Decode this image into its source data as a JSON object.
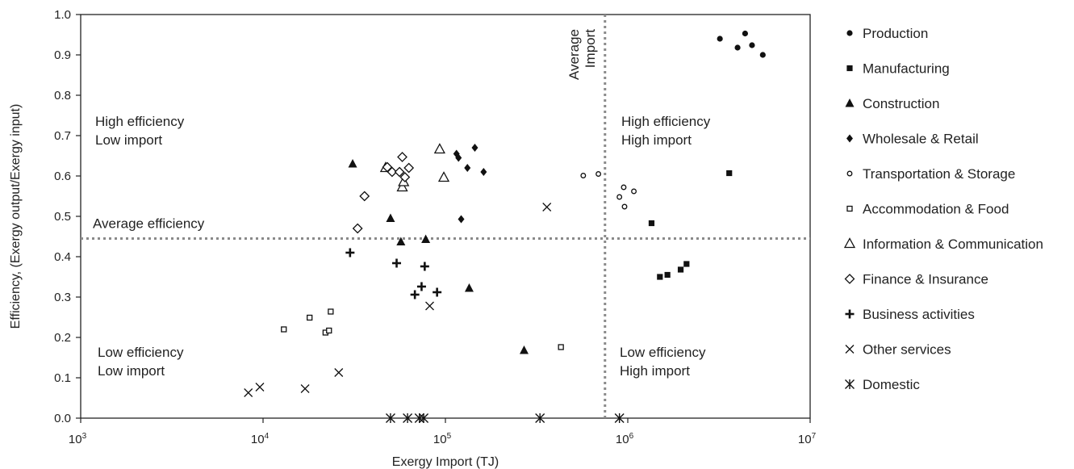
{
  "chart_data": {
    "type": "scatter",
    "title": "",
    "xlabel": "Exergy Import (TJ)",
    "ylabel": "Efficiency, (Exergy output/Exergy input)",
    "xscale": "log",
    "xlim": [
      1000,
      10000000
    ],
    "ylim": [
      0,
      1
    ],
    "x_ticks": [
      {
        "value": 1000,
        "base": "10",
        "exp": "3"
      },
      {
        "value": 10000,
        "base": "10",
        "exp": "4"
      },
      {
        "value": 100000,
        "base": "10",
        "exp": "5"
      },
      {
        "value": 1000000,
        "base": "10",
        "exp": "6"
      },
      {
        "value": 10000000,
        "base": "10",
        "exp": "7"
      }
    ],
    "y_ticks": [
      "0.0",
      "0.1",
      "0.2",
      "0.3",
      "0.4",
      "0.5",
      "0.6",
      "0.7",
      "0.8",
      "0.9",
      "1.0"
    ],
    "grid": false,
    "legend_position": "right",
    "reference_lines": [
      {
        "orientation": "horizontal",
        "value": 0.445,
        "label": "Average efficiency",
        "style": "dotted"
      },
      {
        "orientation": "vertical",
        "value": 750000,
        "label_lines": [
          "Average",
          "Import"
        ],
        "style": "dotted"
      }
    ],
    "quadrant_labels": [
      {
        "lines": [
          "High efficiency",
          "Low import"
        ],
        "anchor": "top-left"
      },
      {
        "lines": [
          "High efficiency",
          "High import"
        ],
        "anchor": "top-right"
      },
      {
        "lines": [
          "Low efficiency",
          "Low import"
        ],
        "anchor": "bottom-left"
      },
      {
        "lines": [
          "Low efficiency",
          "High import"
        ],
        "anchor": "bottom-right"
      }
    ],
    "series": [
      {
        "name": "Production",
        "marker": "circle-filled",
        "points": [
          [
            3200000,
            0.94
          ],
          [
            4400000,
            0.953
          ],
          [
            4000000,
            0.918
          ],
          [
            4800000,
            0.924
          ],
          [
            5500000,
            0.9
          ]
        ]
      },
      {
        "name": "Manufacturing",
        "marker": "square-filled",
        "points": [
          [
            3600000,
            0.607
          ],
          [
            1350000,
            0.483
          ],
          [
            1500000,
            0.35
          ],
          [
            1650000,
            0.355
          ],
          [
            1950000,
            0.368
          ],
          [
            2100000,
            0.382
          ]
        ]
      },
      {
        "name": "Construction",
        "marker": "triangle-filled",
        "points": [
          [
            31000,
            0.63
          ],
          [
            50000,
            0.495
          ],
          [
            57000,
            0.437
          ],
          [
            78000,
            0.443
          ],
          [
            135000,
            0.322
          ],
          [
            270000,
            0.168
          ]
        ]
      },
      {
        "name": "Wholesale & Retail",
        "marker": "diamond-filled",
        "points": [
          [
            115000,
            0.655
          ],
          [
            118000,
            0.645
          ],
          [
            132000,
            0.62
          ],
          [
            145000,
            0.67
          ],
          [
            162000,
            0.61
          ],
          [
            122000,
            0.493
          ]
        ]
      },
      {
        "name": "Transportation & Storage",
        "marker": "circle-open",
        "points": [
          [
            570000,
            0.601
          ],
          [
            690000,
            0.605
          ],
          [
            900000,
            0.548
          ],
          [
            950000,
            0.572
          ],
          [
            960000,
            0.524
          ],
          [
            1080000,
            0.562
          ]
        ]
      },
      {
        "name": "Accommodation & Food",
        "marker": "square-open",
        "points": [
          [
            13000,
            0.22
          ],
          [
            18000,
            0.249
          ],
          [
            22000,
            0.212
          ],
          [
            23000,
            0.217
          ],
          [
            23500,
            0.264
          ],
          [
            430000,
            0.176
          ]
        ]
      },
      {
        "name": "Information & Communication",
        "marker": "triangle-open",
        "points": [
          [
            47000,
            0.62
          ],
          [
            58000,
            0.572
          ],
          [
            59000,
            0.585
          ],
          [
            93000,
            0.666
          ],
          [
            98000,
            0.596
          ]
        ]
      },
      {
        "name": "Finance & Insurance",
        "marker": "diamond-open",
        "points": [
          [
            33000,
            0.47
          ],
          [
            36000,
            0.55
          ],
          [
            48000,
            0.622
          ],
          [
            51000,
            0.61
          ],
          [
            56000,
            0.61
          ],
          [
            58000,
            0.647
          ],
          [
            60000,
            0.597
          ],
          [
            63000,
            0.62
          ]
        ]
      },
      {
        "name": "Business activities",
        "marker": "plus",
        "points": [
          [
            30000,
            0.41
          ],
          [
            54000,
            0.384
          ],
          [
            68000,
            0.306
          ],
          [
            74000,
            0.326
          ],
          [
            77000,
            0.376
          ],
          [
            90000,
            0.312
          ]
        ]
      },
      {
        "name": "Other services",
        "marker": "x",
        "points": [
          [
            8300,
            0.063
          ],
          [
            9600,
            0.077
          ],
          [
            17000,
            0.073
          ],
          [
            26000,
            0.113
          ],
          [
            82000,
            0.278
          ],
          [
            360000,
            0.523
          ]
        ]
      },
      {
        "name": "Domestic",
        "marker": "asterisk",
        "points": [
          [
            50000,
            0
          ],
          [
            62000,
            0
          ],
          [
            72000,
            0
          ],
          [
            76000,
            0
          ],
          [
            330000,
            0
          ],
          [
            900000,
            0
          ]
        ]
      }
    ]
  }
}
